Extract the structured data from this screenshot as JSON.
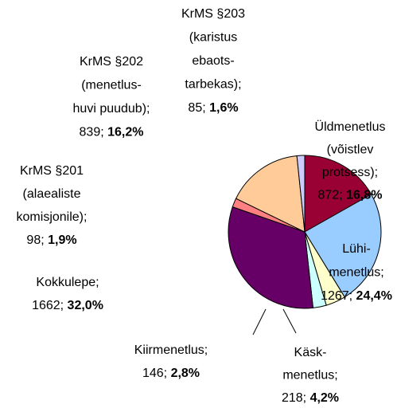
{
  "chart_data": {
    "type": "pie",
    "categories": [
      [
        "Üldmenetlus",
        "(võistlev",
        "protsess);"
      ],
      [
        "Lühi-",
        "menetlus;"
      ],
      [
        "Käsk-",
        "menetlus;"
      ],
      [
        "Kiirmenetlus;"
      ],
      [
        "Kokkulepe;"
      ],
      [
        "KrMS §201",
        "(alaealiste",
        "komisjonile);"
      ],
      [
        "KrMS §202",
        "(menetlus-",
        "huvi puudub);"
      ],
      [
        "KrMS §203",
        "(karistus",
        "ebaots-",
        "tarbekas);"
      ]
    ],
    "values": [
      872,
      1267,
      218,
      146,
      1662,
      98,
      839,
      85
    ],
    "separator": "; ",
    "share_labels": [
      "16,8%",
      "24,4%",
      "4,2%",
      "2,8%",
      "32,0%",
      "1,9%",
      "16,2%",
      "1,6%"
    ],
    "colors": [
      "#990033",
      "#99ccff",
      "#ffffcc",
      "#ccffff",
      "#660066",
      "#ff8080",
      "#ffcc99",
      "#ccccff"
    ]
  }
}
